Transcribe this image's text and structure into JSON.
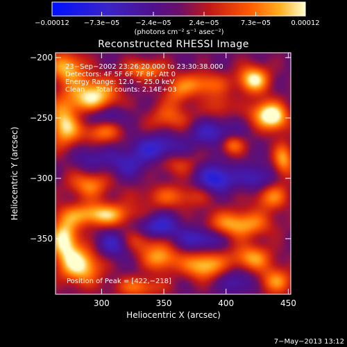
{
  "chart_data": {
    "type": "heatmap",
    "title": "Reconstructed RHESSI Image",
    "xlabel": "Heliocentric X (arcsec)",
    "ylabel": "Heliocentric Y (arcsec)",
    "xlim": [
      263,
      452
    ],
    "ylim": [
      -396,
      -196
    ],
    "x_ticks": [
      300,
      350,
      400,
      450
    ],
    "y_ticks": [
      -200,
      -250,
      -300,
      -350
    ],
    "colorbar": {
      "label": "(photons cm⁻² s⁻¹ asec⁻²)",
      "range": [
        -0.00012,
        0.00012
      ],
      "tick_labels": [
        "−0.00012",
        "−7.3e−05",
        "−2.4e−05",
        "2.4e−05",
        "7.3e−05",
        "0.00012"
      ],
      "tick_values": [
        -0.00012,
        -7.3e-05,
        -2.4e-05,
        2.4e-05,
        7.3e-05,
        0.00012
      ]
    },
    "info_lines": [
      "23−Sep−2002 23:26:20.000 to 23:30:38.000",
      "Detectors: 4F 5F 6F 7F 8F, Att 0",
      "Energy Range: 12.0 − 25.0 keV",
      "Clean     Total counts: 2.14E+03"
    ],
    "peak_label": "Position of Peak = [422,−218]",
    "date_stamp": "7−May−2013 13:12",
    "sources": [
      {
        "x": 293,
        "y": -232,
        "amp": 0.00012,
        "sx": 14,
        "sy": 11
      },
      {
        "x": 272,
        "y": -208,
        "amp": 0.0001,
        "sx": 10,
        "sy": 9
      },
      {
        "x": 335,
        "y": -210,
        "amp": 8e-05,
        "sx": 12,
        "sy": 6
      },
      {
        "x": 270,
        "y": -255,
        "amp": 0.00011,
        "sx": 9,
        "sy": 14
      },
      {
        "x": 300,
        "y": -262,
        "amp": 7e-05,
        "sx": 12,
        "sy": 7
      },
      {
        "x": 380,
        "y": -222,
        "amp": 8e-05,
        "sx": 14,
        "sy": 7
      },
      {
        "x": 422,
        "y": -218,
        "amp": 0.00012,
        "sx": 9,
        "sy": 8
      },
      {
        "x": 432,
        "y": -246,
        "amp": 0.0001,
        "sx": 10,
        "sy": 8
      },
      {
        "x": 446,
        "y": -285,
        "amp": 9e-05,
        "sx": 6,
        "sy": 10
      },
      {
        "x": 405,
        "y": -272,
        "amp": 8e-05,
        "sx": 7,
        "sy": 6
      },
      {
        "x": 440,
        "y": -252,
        "amp": 7e-05,
        "sx": 8,
        "sy": 8
      },
      {
        "x": 355,
        "y": -250,
        "amp": 6e-05,
        "sx": 14,
        "sy": 8
      },
      {
        "x": 290,
        "y": -305,
        "amp": 8e-05,
        "sx": 12,
        "sy": 8
      },
      {
        "x": 298,
        "y": -330,
        "amp": 0.00011,
        "sx": 20,
        "sy": 7
      },
      {
        "x": 358,
        "y": -315,
        "amp": 6e-05,
        "sx": 20,
        "sy": 7
      },
      {
        "x": 360,
        "y": -288,
        "amp": 5e-05,
        "sx": 12,
        "sy": 7
      },
      {
        "x": 410,
        "y": -338,
        "amp": 0.0001,
        "sx": 18,
        "sy": 8
      },
      {
        "x": 436,
        "y": -315,
        "amp": 8e-05,
        "sx": 10,
        "sy": 8
      },
      {
        "x": 270,
        "y": -350,
        "amp": 0.00012,
        "sx": 8,
        "sy": 12
      },
      {
        "x": 283,
        "y": -372,
        "amp": 0.00012,
        "sx": 12,
        "sy": 11
      },
      {
        "x": 348,
        "y": -366,
        "amp": 9e-05,
        "sx": 10,
        "sy": 8
      },
      {
        "x": 330,
        "y": -352,
        "amp": 6e-05,
        "sx": 12,
        "sy": 8
      },
      {
        "x": 382,
        "y": -372,
        "amp": 0.00011,
        "sx": 12,
        "sy": 8
      },
      {
        "x": 420,
        "y": -366,
        "amp": 9e-05,
        "sx": 12,
        "sy": 8
      },
      {
        "x": 440,
        "y": -385,
        "amp": 8e-05,
        "sx": 10,
        "sy": 8
      },
      {
        "x": 330,
        "y": -390,
        "amp": 7e-05,
        "sx": 14,
        "sy": 6
      },
      {
        "x": 395,
        "y": -240,
        "amp": 5e-05,
        "sx": 8,
        "sy": 8
      },
      {
        "x": 360,
        "y": -230,
        "amp": 5e-05,
        "sx": 8,
        "sy": 8
      },
      {
        "x": 300,
        "y": -248,
        "amp": -6e-05,
        "sx": 15,
        "sy": 6
      },
      {
        "x": 345,
        "y": -275,
        "amp": -7e-05,
        "sx": 14,
        "sy": 8
      },
      {
        "x": 390,
        "y": -262,
        "amp": -6e-05,
        "sx": 14,
        "sy": 8
      },
      {
        "x": 392,
        "y": -300,
        "amp": -9e-05,
        "sx": 10,
        "sy": 8
      },
      {
        "x": 320,
        "y": -288,
        "amp": -5e-05,
        "sx": 12,
        "sy": 8
      },
      {
        "x": 345,
        "y": -340,
        "amp": -8e-05,
        "sx": 12,
        "sy": 7
      },
      {
        "x": 380,
        "y": -350,
        "amp": -7e-05,
        "sx": 12,
        "sy": 7
      },
      {
        "x": 425,
        "y": -300,
        "amp": -6e-05,
        "sx": 10,
        "sy": 8
      },
      {
        "x": 310,
        "y": -355,
        "amp": -7e-05,
        "sx": 10,
        "sy": 8
      },
      {
        "x": 290,
        "y": -283,
        "amp": -4e-05,
        "sx": 10,
        "sy": 8
      },
      {
        "x": 410,
        "y": -385,
        "amp": -5e-05,
        "sx": 10,
        "sy": 8
      }
    ]
  }
}
